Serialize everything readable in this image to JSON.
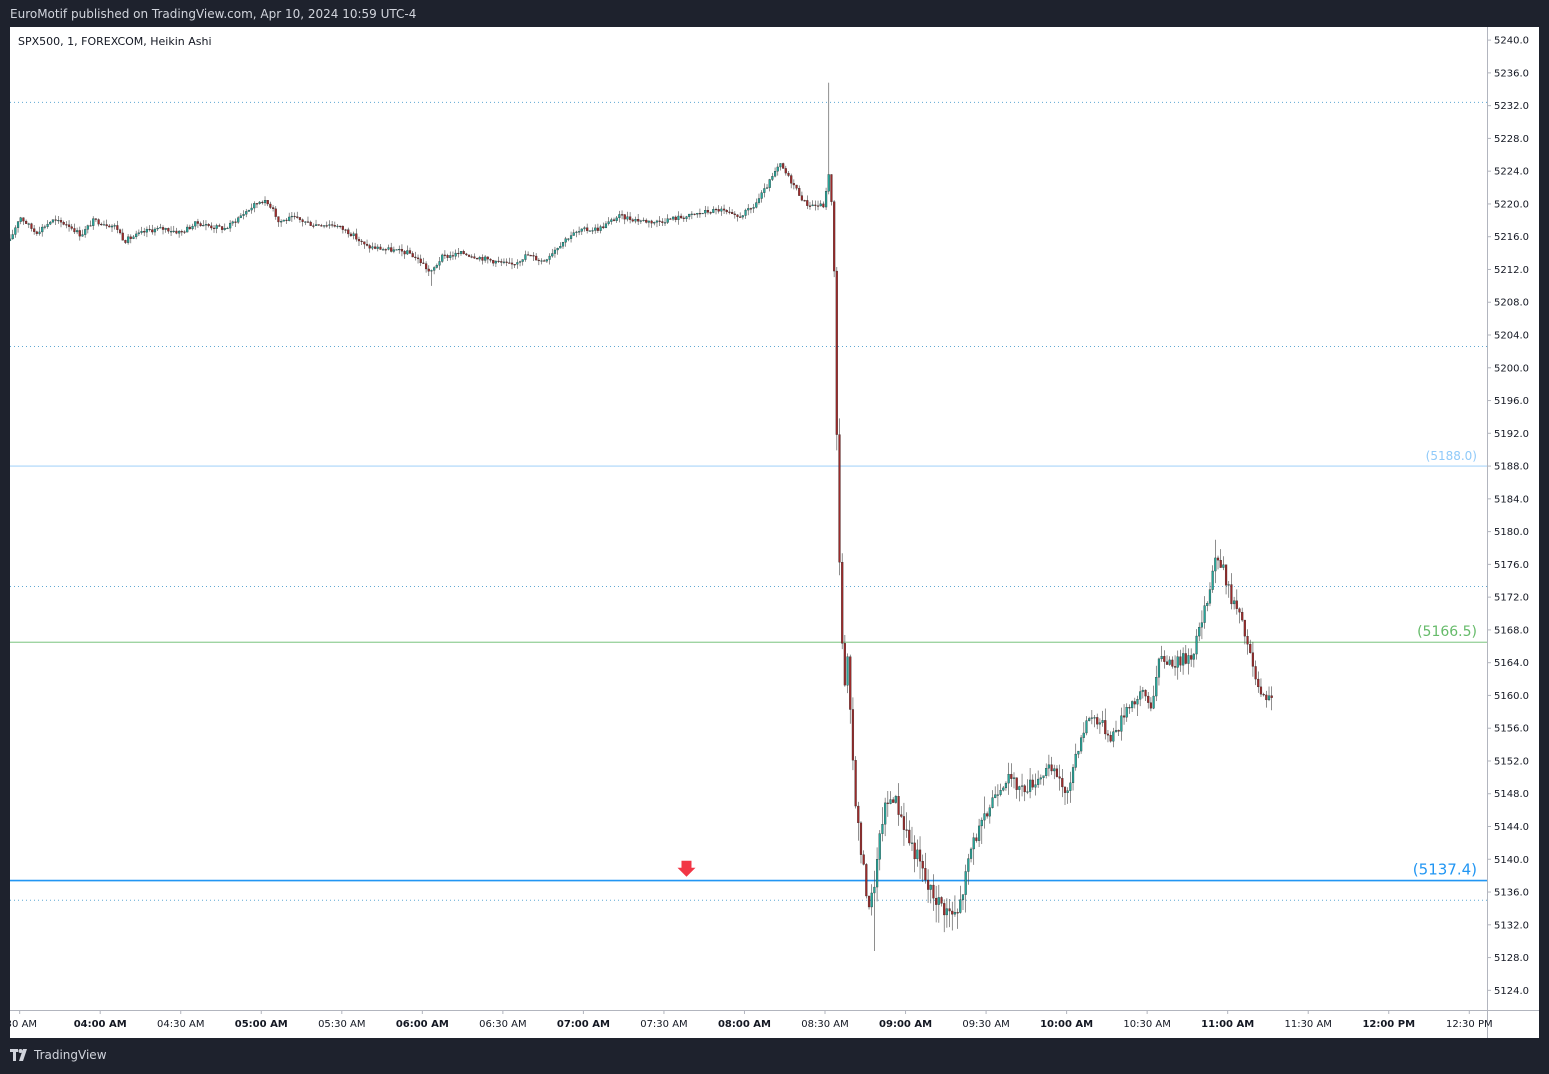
{
  "header": {
    "published": "EuroMotif published on TradingView.com, Apr 10, 2024 10:59 UTC-4"
  },
  "footer": {
    "brand": "TradingView",
    "brand_icon": "tradingview-logo-icon"
  },
  "colors": {
    "up": "#26a69a",
    "down": "#9c2a2a",
    "support_blue": "#2196f3",
    "level_green": "#66bb6a",
    "level_lightblue": "#90caf9",
    "dotted": "#5fa8d3"
  },
  "chart_data": {
    "type": "candlestick",
    "title": "SPX500, 1, FOREXCOM, Heikin Ashi",
    "y_ticks": [
      "5240.0",
      "5236.0",
      "5232.0",
      "5228.0",
      "5224.0",
      "5220.0",
      "5216.0",
      "5212.0",
      "5208.0",
      "5204.0",
      "5200.0",
      "5196.0",
      "5192.0",
      "5188.0",
      "5184.0",
      "5180.0",
      "5176.0",
      "5172.0",
      "5168.0",
      "5164.0",
      "5160.0",
      "5156.0",
      "5152.0",
      "5148.0",
      "5144.0",
      "5140.0",
      "5136.0",
      "5132.0",
      "5128.0",
      "5124.0"
    ],
    "x_ticks": [
      {
        "label": ":30 AM",
        "t": 3.5,
        "bold": false
      },
      {
        "label": "04:00 AM",
        "t": 4.0,
        "bold": true
      },
      {
        "label": "04:30 AM",
        "t": 4.5,
        "bold": false
      },
      {
        "label": "05:00 AM",
        "t": 5.0,
        "bold": true
      },
      {
        "label": "05:30 AM",
        "t": 5.5,
        "bold": false
      },
      {
        "label": "06:00 AM",
        "t": 6.0,
        "bold": true
      },
      {
        "label": "06:30 AM",
        "t": 6.5,
        "bold": false
      },
      {
        "label": "07:00 AM",
        "t": 7.0,
        "bold": true
      },
      {
        "label": "07:30 AM",
        "t": 7.5,
        "bold": false
      },
      {
        "label": "08:00 AM",
        "t": 8.0,
        "bold": true
      },
      {
        "label": "08:30 AM",
        "t": 8.5,
        "bold": false
      },
      {
        "label": "09:00 AM",
        "t": 9.0,
        "bold": true
      },
      {
        "label": "09:30 AM",
        "t": 9.5,
        "bold": false
      },
      {
        "label": "10:00 AM",
        "t": 10.0,
        "bold": true
      },
      {
        "label": "10:30 AM",
        "t": 10.5,
        "bold": false
      },
      {
        "label": "11:00 AM",
        "t": 11.0,
        "bold": true
      },
      {
        "label": "11:30 AM",
        "t": 11.5,
        "bold": false
      },
      {
        "label": "12:00 PM",
        "t": 12.0,
        "bold": true
      },
      {
        "label": "12:30 PM",
        "t": 12.5,
        "bold": false
      }
    ],
    "y_range": [
      5121.6,
      5241.6
    ],
    "x_range": [
      3.44,
      12.61
    ],
    "dotted_levels": [
      5232.4,
      5202.6,
      5173.3,
      5135.0
    ],
    "levels": [
      {
        "price": 5188.0,
        "label": "(5188.0)",
        "color": "#90caf9",
        "kind": "thin"
      },
      {
        "price": 5166.5,
        "label": "(5166.5)",
        "color": "#66bb6a",
        "kind": "thin"
      },
      {
        "price": 5137.4,
        "label": "(5137.4)",
        "color": "#2196f3",
        "kind": "thick"
      }
    ],
    "arrow": {
      "t": 7.64,
      "price": 5138.6
    },
    "path": [
      [
        3.44,
        5215.5
      ],
      [
        3.5,
        5218.5
      ],
      [
        3.6,
        5216.5
      ],
      [
        3.7,
        5218.0
      ],
      [
        3.8,
        5217.5
      ],
      [
        3.88,
        5216.2
      ],
      [
        3.96,
        5218.0
      ],
      [
        4.1,
        5217.2
      ],
      [
        4.15,
        5215.5
      ],
      [
        4.3,
        5216.8
      ],
      [
        4.4,
        5217.0
      ],
      [
        4.5,
        5216.5
      ],
      [
        4.6,
        5217.7
      ],
      [
        4.7,
        5217.2
      ],
      [
        4.78,
        5217.0
      ],
      [
        4.9,
        5219.0
      ],
      [
        5.0,
        5220.5
      ],
      [
        5.08,
        5219.5
      ],
      [
        5.1,
        5217.8
      ],
      [
        5.2,
        5218.3
      ],
      [
        5.32,
        5217.5
      ],
      [
        5.45,
        5217.5
      ],
      [
        5.55,
        5216.5
      ],
      [
        5.65,
        5214.8
      ],
      [
        5.8,
        5214.4
      ],
      [
        5.92,
        5214.0
      ],
      [
        6.0,
        5212.8
      ],
      [
        6.05,
        5211.5
      ],
      [
        6.12,
        5213.5
      ],
      [
        6.25,
        5214.0
      ],
      [
        6.35,
        5213.5
      ],
      [
        6.45,
        5213.0
      ],
      [
        6.55,
        5212.5
      ],
      [
        6.65,
        5213.8
      ],
      [
        6.75,
        5213.0
      ],
      [
        6.85,
        5215.0
      ],
      [
        6.92,
        5216.2
      ],
      [
        7.0,
        5216.8
      ],
      [
        7.1,
        5217.0
      ],
      [
        7.22,
        5218.5
      ],
      [
        7.35,
        5218.0
      ],
      [
        7.45,
        5217.8
      ],
      [
        7.55,
        5218.2
      ],
      [
        7.65,
        5218.5
      ],
      [
        7.75,
        5219.0
      ],
      [
        7.85,
        5219.3
      ],
      [
        7.95,
        5218.3
      ],
      [
        8.05,
        5219.5
      ],
      [
        8.12,
        5221.5
      ],
      [
        8.22,
        5224.8
      ],
      [
        8.3,
        5222.5
      ],
      [
        8.38,
        5220.0
      ],
      [
        8.45,
        5219.8
      ],
      [
        8.5,
        5219.8
      ],
      [
        8.52,
        5224.5
      ],
      [
        8.55,
        5218.0
      ],
      [
        8.56,
        5208.0
      ],
      [
        8.57,
        5195.0
      ],
      [
        8.58,
        5184.0
      ],
      [
        8.6,
        5170.0
      ],
      [
        8.62,
        5160.0
      ],
      [
        8.64,
        5164.0
      ],
      [
        8.66,
        5156.0
      ],
      [
        8.68,
        5150.0
      ],
      [
        8.7,
        5145.0
      ],
      [
        8.72,
        5141.5
      ],
      [
        8.75,
        5137.0
      ],
      [
        8.78,
        5134.0
      ],
      [
        8.82,
        5139.0
      ],
      [
        8.86,
        5145.5
      ],
      [
        8.92,
        5148.0
      ],
      [
        8.98,
        5145.0
      ],
      [
        9.02,
        5142.5
      ],
      [
        9.08,
        5140.0
      ],
      [
        9.14,
        5136.5
      ],
      [
        9.22,
        5134.5
      ],
      [
        9.27,
        5133.5
      ],
      [
        9.32,
        5133.0
      ],
      [
        9.36,
        5136.5
      ],
      [
        9.42,
        5142.5
      ],
      [
        9.48,
        5144.0
      ],
      [
        9.55,
        5148.0
      ],
      [
        9.63,
        5150.0
      ],
      [
        9.72,
        5148.5
      ],
      [
        9.8,
        5149.5
      ],
      [
        9.88,
        5151.0
      ],
      [
        9.96,
        5150.0
      ],
      [
        10.0,
        5147.0
      ],
      [
        10.05,
        5152.5
      ],
      [
        10.1,
        5155.5
      ],
      [
        10.14,
        5157.5
      ],
      [
        10.2,
        5157.0
      ],
      [
        10.27,
        5155.0
      ],
      [
        10.32,
        5156.0
      ],
      [
        10.38,
        5159.0
      ],
      [
        10.44,
        5159.5
      ],
      [
        10.48,
        5160.5
      ],
      [
        10.52,
        5158.5
      ],
      [
        10.58,
        5164.5
      ],
      [
        10.68,
        5164.0
      ],
      [
        10.78,
        5165.0
      ],
      [
        10.86,
        5170.5
      ],
      [
        10.9,
        5174.5
      ],
      [
        10.92,
        5177.0
      ],
      [
        10.97,
        5175.5
      ],
      [
        11.02,
        5172.0
      ],
      [
        11.07,
        5170.0
      ],
      [
        11.12,
        5166.5
      ],
      [
        11.16,
        5163.0
      ],
      [
        11.2,
        5160.0
      ],
      [
        11.24,
        5159.0
      ],
      [
        11.28,
        5160.5
      ]
    ]
  }
}
